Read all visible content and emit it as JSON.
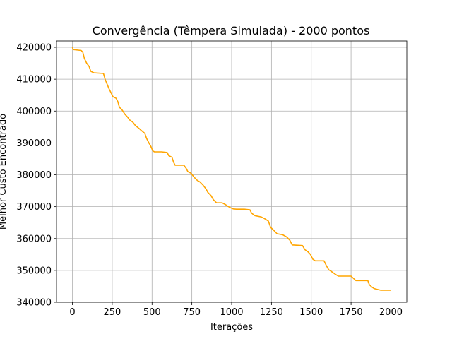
{
  "chart_data": {
    "type": "line",
    "title": "Convergência (Têmpera Simulada) - 2000 pontos",
    "xlabel": "Iterações",
    "ylabel": "Melhor Custo Encontrado",
    "xlim": [
      -100,
      2100
    ],
    "ylim": [
      340000,
      422000
    ],
    "xticks": [
      0,
      250,
      500,
      750,
      1000,
      1250,
      1500,
      1750,
      2000
    ],
    "yticks": [
      340000,
      350000,
      360000,
      370000,
      380000,
      390000,
      400000,
      410000,
      420000
    ],
    "grid": true,
    "series": [
      {
        "color": "#ffa500",
        "x": [
          0,
          5,
          55,
          65,
          75,
          90,
          105,
          115,
          135,
          195,
          205,
          215,
          230,
          245,
          255,
          275,
          285,
          295,
          310,
          330,
          345,
          360,
          380,
          395,
          420,
          430,
          455,
          465,
          480,
          490,
          505,
          515,
          560,
          595,
          605,
          625,
          635,
          645,
          700,
          715,
          725,
          745,
          765,
          785,
          800,
          820,
          840,
          850,
          870,
          885,
          905,
          940,
          960,
          980,
          1000,
          1010,
          1030,
          1060,
          1080,
          1115,
          1125,
          1145,
          1185,
          1205,
          1230,
          1245,
          1260,
          1285,
          1320,
          1345,
          1365,
          1380,
          1445,
          1460,
          1480,
          1495,
          1510,
          1525,
          1580,
          1595,
          1610,
          1625,
          1645,
          1670,
          1750,
          1765,
          1780,
          1855,
          1865,
          1880,
          1895,
          1910,
          1935,
          2000
        ],
        "y": [
          420000,
          419300,
          419000,
          418500,
          416500,
          415000,
          414000,
          412500,
          412000,
          411800,
          410000,
          408800,
          407000,
          405500,
          404500,
          404000,
          403000,
          401200,
          400500,
          399000,
          398200,
          397200,
          396500,
          395500,
          394500,
          394000,
          393000,
          391500,
          390000,
          389200,
          387500,
          387200,
          387200,
          387000,
          386000,
          385500,
          384000,
          383000,
          383000,
          382000,
          381000,
          380500,
          379200,
          378200,
          377800,
          376800,
          375500,
          374500,
          373500,
          372200,
          371200,
          371200,
          370700,
          370000,
          369500,
          369300,
          369200,
          369200,
          369200,
          369000,
          368000,
          367200,
          366800,
          366300,
          365500,
          363500,
          362800,
          361500,
          361200,
          360500,
          359500,
          358000,
          357800,
          356500,
          355800,
          355000,
          353500,
          353000,
          353000,
          351500,
          350200,
          349700,
          349000,
          348200,
          348200,
          347500,
          346800,
          346800,
          345500,
          344800,
          344300,
          344100,
          343800,
          343800
        ]
      }
    ]
  }
}
